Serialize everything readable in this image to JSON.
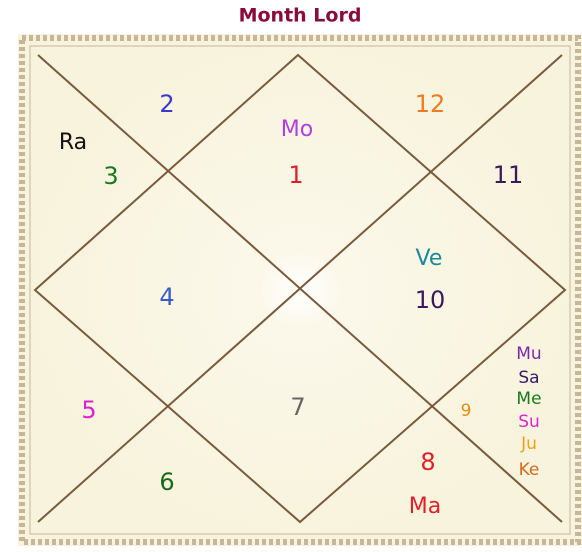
{
  "title": "Month Lord",
  "houses": [
    {
      "number": "1",
      "planets": [
        "Mo"
      ]
    },
    {
      "number": "2",
      "planets": []
    },
    {
      "number": "3",
      "planets": [
        "Ra"
      ]
    },
    {
      "number": "4",
      "planets": []
    },
    {
      "number": "5",
      "planets": []
    },
    {
      "number": "6",
      "planets": []
    },
    {
      "number": "7",
      "planets": []
    },
    {
      "number": "8",
      "planets": [
        "Ma"
      ]
    },
    {
      "number": "9",
      "planets": [
        "Mu",
        "Sa",
        "Me",
        "Su",
        "Ju",
        "Ke"
      ]
    },
    {
      "number": "10",
      "planets": [
        "Ve"
      ]
    },
    {
      "number": "11",
      "planets": []
    },
    {
      "number": "12",
      "planets": []
    }
  ]
}
